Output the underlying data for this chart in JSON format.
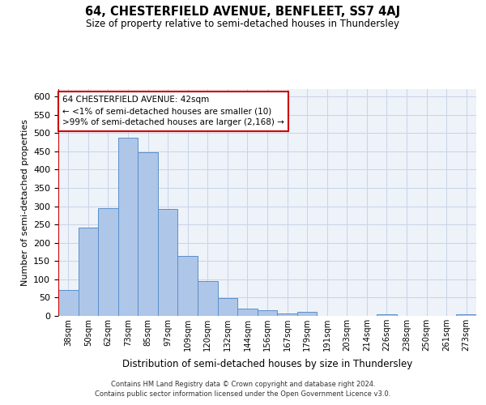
{
  "title": "64, CHESTERFIELD AVENUE, BENFLEET, SS7 4AJ",
  "subtitle": "Size of property relative to semi-detached houses in Thundersley",
  "xlabel": "Distribution of semi-detached houses by size in Thundersley",
  "ylabel": "Number of semi-detached properties",
  "footnote1": "Contains HM Land Registry data © Crown copyright and database right 2024.",
  "footnote2": "Contains public sector information licensed under the Open Government Licence v3.0.",
  "annotation_title": "64 CHESTERFIELD AVENUE: 42sqm",
  "annotation_line1": "← <1% of semi-detached houses are smaller (10)",
  "annotation_line2": ">99% of semi-detached houses are larger (2,168) →",
  "categories": [
    "38sqm",
    "50sqm",
    "62sqm",
    "73sqm",
    "85sqm",
    "97sqm",
    "109sqm",
    "120sqm",
    "132sqm",
    "144sqm",
    "156sqm",
    "167sqm",
    "179sqm",
    "191sqm",
    "203sqm",
    "214sqm",
    "226sqm",
    "238sqm",
    "250sqm",
    "261sqm",
    "273sqm"
  ],
  "values": [
    70,
    242,
    295,
    487,
    448,
    293,
    163,
    96,
    49,
    20,
    15,
    7,
    10,
    0,
    0,
    0,
    5,
    0,
    0,
    0,
    5
  ],
  "bar_color": "#aec6e8",
  "bar_edge_color": "#5b8fc9",
  "highlight_color": "#cc0000",
  "bg_color": "#eef2f9",
  "grid_color": "#c8d4e8",
  "ylim": [
    0,
    620
  ],
  "yticks": [
    0,
    50,
    100,
    150,
    200,
    250,
    300,
    350,
    400,
    450,
    500,
    550,
    600
  ]
}
